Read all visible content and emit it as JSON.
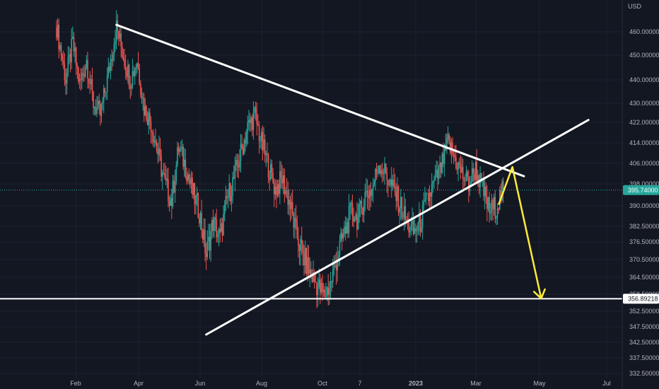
{
  "chart_data": {
    "type": "candlestick",
    "currency_label": "USD",
    "x_ticks": [
      "Feb",
      "Apr",
      "Jun",
      "Aug",
      "Oct",
      "7",
      "2023",
      "Mar",
      "May",
      "Jul"
    ],
    "y_ticks": [
      460,
      450,
      440,
      430,
      422,
      414,
      406,
      398,
      390,
      382.5,
      376.5,
      370.5,
      364.5,
      358.5,
      352.5,
      347.5,
      342.5,
      337.5,
      332.5
    ],
    "y_tick_labels": [
      "460.00000",
      "450.00000",
      "440.00000",
      "430.00000",
      "422.00000",
      "414.00000",
      "406.00000",
      "398.00000",
      "390.00000",
      "382.50000",
      "376.50000",
      "370.50000",
      "364.50000",
      "358.50000",
      "352.50000",
      "347.50000",
      "342.50000",
      "337.50000",
      "332.50000"
    ],
    "last_price": 395.74,
    "last_price_label": "395.74000",
    "support_level": 356.89218,
    "support_label": "356.89218",
    "price_path": [
      [
        0,
        462
      ],
      [
        8,
        440
      ],
      [
        14,
        455
      ],
      [
        20,
        438
      ],
      [
        26,
        448
      ],
      [
        32,
        430
      ],
      [
        38,
        425
      ],
      [
        44,
        440
      ],
      [
        52,
        462
      ],
      [
        58,
        450
      ],
      [
        64,
        440
      ],
      [
        70,
        448
      ],
      [
        76,
        428
      ],
      [
        82,
        422
      ],
      [
        88,
        410
      ],
      [
        94,
        398
      ],
      [
        100,
        392
      ],
      [
        106,
        412
      ],
      [
        112,
        405
      ],
      [
        118,
        395
      ],
      [
        124,
        388
      ],
      [
        130,
        372
      ],
      [
        136,
        384
      ],
      [
        142,
        378
      ],
      [
        148,
        392
      ],
      [
        154,
        400
      ],
      [
        160,
        410
      ],
      [
        166,
        420
      ],
      [
        172,
        425
      ],
      [
        178,
        414
      ],
      [
        184,
        405
      ],
      [
        190,
        396
      ],
      [
        196,
        400
      ],
      [
        202,
        392
      ],
      [
        208,
        380
      ],
      [
        214,
        372
      ],
      [
        220,
        366
      ],
      [
        226,
        362
      ],
      [
        232,
        358
      ],
      [
        238,
        362
      ],
      [
        244,
        372
      ],
      [
        250,
        380
      ],
      [
        256,
        388
      ],
      [
        262,
        385
      ],
      [
        268,
        394
      ],
      [
        274,
        396
      ],
      [
        280,
        406
      ],
      [
        286,
        402
      ],
      [
        292,
        396
      ],
      [
        298,
        391
      ],
      [
        304,
        384
      ],
      [
        310,
        380
      ],
      [
        316,
        384
      ],
      [
        322,
        392
      ],
      [
        328,
        398
      ],
      [
        334,
        404
      ],
      [
        340,
        414
      ],
      [
        346,
        408
      ],
      [
        352,
        402
      ],
      [
        358,
        398
      ],
      [
        364,
        404
      ],
      [
        370,
        396
      ],
      [
        376,
        388
      ],
      [
        382,
        390
      ],
      [
        388,
        395.7
      ]
    ],
    "annotations": {
      "lines": [
        {
          "name": "descending-resistance",
          "color": "#ffffff",
          "from": [
            52,
            463
          ],
          "to": [
            406,
            401
          ]
        },
        {
          "name": "ascending-support",
          "color": "#ffffff",
          "from": [
            130,
            345
          ],
          "to": [
            462,
            423
          ]
        },
        {
          "name": "horizontal-support",
          "color": "#ffffff",
          "level": 356.89218
        }
      ],
      "projection": {
        "color": "#ffeb3b",
        "points": [
          [
            384,
            390.4
          ],
          [
            396,
            404.6
          ],
          [
            421,
            357
          ]
        ]
      }
    },
    "colors": {
      "up": "#26a69a",
      "down": "#ef5350",
      "background": "#131722",
      "axis_text": "#b2b5be",
      "last_price_tag": "#26a69a"
    }
  }
}
